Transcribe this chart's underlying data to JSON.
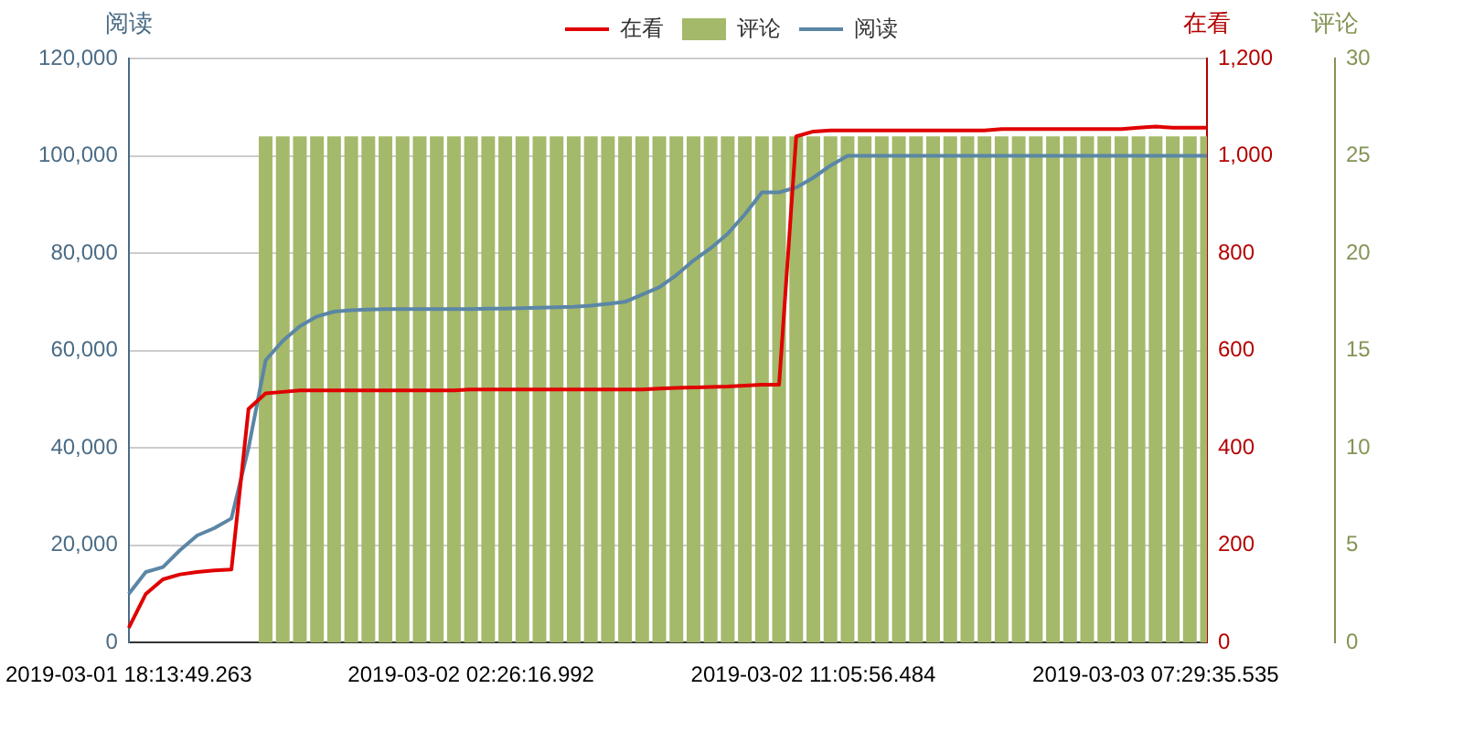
{
  "chart_data": {
    "type": "line",
    "categories": [
      "2019-03-01 18:13:49.263",
      null,
      null,
      null,
      null,
      null,
      null,
      null,
      null,
      null,
      null,
      null,
      null,
      null,
      null,
      null,
      null,
      null,
      null,
      null,
      "2019-03-02 02:26:16.992",
      null,
      null,
      null,
      null,
      null,
      null,
      null,
      null,
      null,
      null,
      null,
      null,
      null,
      null,
      null,
      null,
      null,
      null,
      null,
      "2019-03-02 11:05:56.484",
      null,
      null,
      null,
      null,
      null,
      null,
      null,
      null,
      null,
      null,
      null,
      null,
      null,
      null,
      null,
      null,
      null,
      null,
      null,
      "2019-03-03 07:29:35.535",
      null,
      null,
      null
    ],
    "series": [
      {
        "name": "在看",
        "axis": "y2",
        "color": "#e00000",
        "values": [
          30,
          100,
          130,
          140,
          145,
          148,
          150,
          480,
          512,
          515,
          518,
          518,
          518,
          518,
          518,
          518,
          518,
          518,
          518,
          518,
          520,
          520,
          520,
          520,
          520,
          520,
          520,
          520,
          520,
          520,
          520,
          522,
          523,
          524,
          525,
          526,
          528,
          530,
          530,
          1040,
          1050,
          1052,
          1052,
          1052,
          1052,
          1052,
          1052,
          1052,
          1052,
          1052,
          1052,
          1055,
          1055,
          1055,
          1055,
          1055,
          1055,
          1055,
          1055,
          1058,
          1060,
          1058,
          1058,
          1058
        ]
      },
      {
        "name": "评论",
        "type": "bar",
        "axis": "y3",
        "color": "#a4b96a",
        "values": [
          null,
          null,
          null,
          null,
          null,
          null,
          null,
          null,
          26,
          26,
          26,
          26,
          26,
          26,
          26,
          26,
          26,
          26,
          26,
          26,
          26,
          26,
          26,
          26,
          26,
          26,
          26,
          26,
          26,
          26,
          26,
          26,
          26,
          26,
          26,
          26,
          26,
          26,
          26,
          26,
          26,
          26,
          26,
          26,
          26,
          26,
          26,
          26,
          26,
          26,
          26,
          26,
          26,
          26,
          26,
          26,
          26,
          26,
          26,
          26,
          26,
          26,
          26,
          26
        ]
      },
      {
        "name": "阅读",
        "axis": "y",
        "color": "#5b86a6",
        "values": [
          10000,
          14500,
          15500,
          19000,
          22000,
          23500,
          25500,
          40000,
          58000,
          62000,
          65000,
          67000,
          68000,
          68300,
          68400,
          68500,
          68500,
          68500,
          68500,
          68500,
          68500,
          68600,
          68600,
          68700,
          68800,
          68900,
          69000,
          69200,
          69600,
          70000,
          71500,
          73000,
          75500,
          78500,
          81000,
          84000,
          88000,
          92500,
          92500,
          93500,
          95500,
          98000,
          100000,
          100000,
          100000,
          100000,
          100000,
          100000,
          100000,
          100000,
          100000,
          100000,
          100000,
          100000,
          100000,
          100000,
          100000,
          100000,
          100000,
          100000,
          100000,
          100000,
          100000,
          100000
        ]
      }
    ],
    "ylabel": "阅读",
    "y2label": "在看",
    "y3label": "评论",
    "ylim": [
      0,
      120000
    ],
    "yticks": [
      {
        "value": 0,
        "label": "0"
      },
      {
        "value": 20000,
        "label": "20,000"
      },
      {
        "value": 40000,
        "label": "40,000"
      },
      {
        "value": 60000,
        "label": "60,000"
      },
      {
        "value": 80000,
        "label": "80,000"
      },
      {
        "value": 100000,
        "label": "100,000"
      },
      {
        "value": 120000,
        "label": "120,000"
      }
    ],
    "y2lim": [
      0,
      1200
    ],
    "y2ticks": [
      0,
      200,
      400,
      600,
      800,
      {
        "value": 1000,
        "label": "1,000"
      },
      {
        "value": 1200,
        "label": "1,200"
      }
    ],
    "y3lim": [
      0,
      30
    ],
    "y3ticks": [
      0,
      5,
      10,
      15,
      20,
      25,
      30
    ],
    "grid": "y",
    "legend": "top"
  }
}
